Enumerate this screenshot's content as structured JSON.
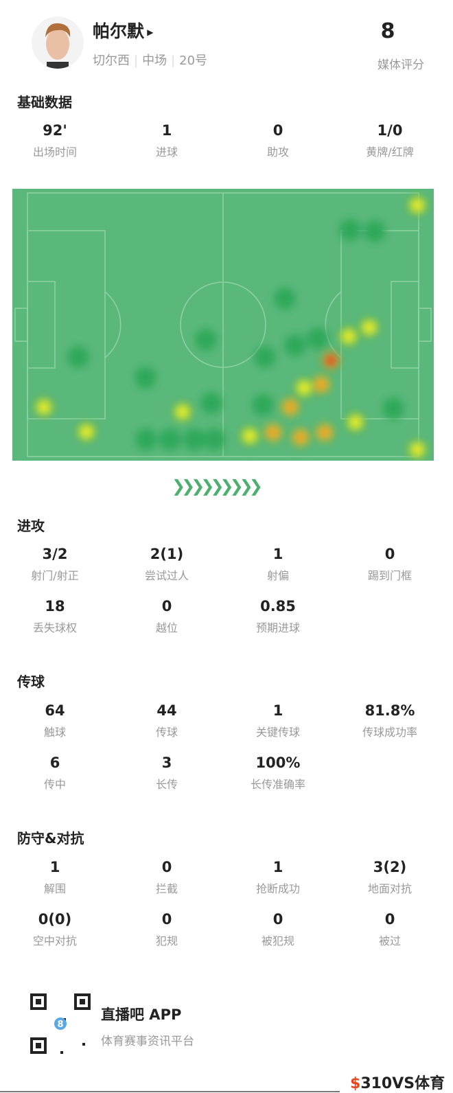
{
  "player": {
    "name": "帕尔默",
    "team": "切尔西",
    "position": "中场",
    "number": "20号",
    "rating": "8",
    "rating_label": "媒体评分"
  },
  "sections": [
    {
      "title": "基础数据",
      "rows": [
        [
          {
            "v": "92'",
            "l": "出场时间"
          },
          {
            "v": "1",
            "l": "进球"
          },
          {
            "v": "0",
            "l": "助攻"
          },
          {
            "v": "1/0",
            "l": "黄牌/红牌"
          }
        ]
      ]
    },
    {
      "title": "进攻",
      "rows": [
        [
          {
            "v": "3/2",
            "l": "射门/射正"
          },
          {
            "v": "2(1)",
            "l": "尝试过人"
          },
          {
            "v": "1",
            "l": "射偏"
          },
          {
            "v": "0",
            "l": "踢到门框"
          }
        ],
        [
          {
            "v": "18",
            "l": "丢失球权"
          },
          {
            "v": "0",
            "l": "越位"
          },
          {
            "v": "0.85",
            "l": "预期进球"
          }
        ]
      ]
    },
    {
      "title": "传球",
      "rows": [
        [
          {
            "v": "64",
            "l": "触球"
          },
          {
            "v": "44",
            "l": "传球"
          },
          {
            "v": "1",
            "l": "关键传球"
          },
          {
            "v": "81.8%",
            "l": "传球成功率"
          }
        ],
        [
          {
            "v": "6",
            "l": "传中"
          },
          {
            "v": "3",
            "l": "长传"
          },
          {
            "v": "100%",
            "l": "长传准确率"
          }
        ]
      ]
    },
    {
      "title": "防守&对抗",
      "rows": [
        [
          {
            "v": "1",
            "l": "解围"
          },
          {
            "v": "0",
            "l": "拦截"
          },
          {
            "v": "1",
            "l": "抢断成功"
          },
          {
            "v": "3(2)",
            "l": "地面对抗"
          }
        ],
        [
          {
            "v": "0(0)",
            "l": "空中对抗"
          },
          {
            "v": "0",
            "l": "犯规"
          },
          {
            "v": "0",
            "l": "被犯规"
          },
          {
            "v": "0",
            "l": "被过"
          }
        ]
      ]
    }
  ],
  "footer": {
    "app_name": "直播吧 APP",
    "app_sub": "体育赛事资讯平台",
    "qr_badge": "8",
    "watermark": "310VS体育"
  },
  "colors": {
    "pitch": "#5bb87b",
    "accent": "#4caf6e"
  },
  "icons": {
    "play": "triangle-right",
    "chevrons": "double-chevron-right"
  }
}
